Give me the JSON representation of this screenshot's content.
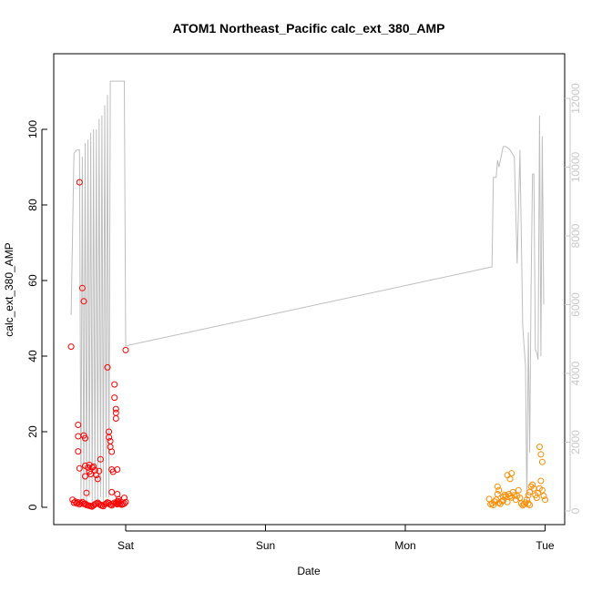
{
  "chart_data": {
    "type": "scatter",
    "title": "ATOM1 Northeast_Pacific calc_ext_380_AMP",
    "xlabel": "Date",
    "ylabel": "calc_ext_380_AMP",
    "x_ticks": [
      "Sat",
      "Sun",
      "Mon",
      "Tue"
    ],
    "y_left_ticks": [
      "0",
      "20",
      "40",
      "60",
      "80",
      "100"
    ],
    "y_right_ticks": [
      "0",
      "2000",
      "4000",
      "6000",
      "8000",
      "10000",
      "12000"
    ],
    "ylim_left": [
      0,
      116
    ],
    "ylim_right": [
      0,
      12300
    ],
    "colors": {
      "red_series": "#ff0000",
      "orange_series": "#ff8c00",
      "line": "#bebebe",
      "axis": "#000000",
      "right_axis": "#c8c8c8"
    },
    "series": [
      {
        "marker": "circle-open",
        "color": "#ff0000",
        "x_days": [
          -0.38,
          -0.37,
          -0.36,
          -0.35,
          -0.34,
          -0.33,
          -0.32,
          -0.31,
          -0.3,
          -0.29,
          -0.28,
          -0.27,
          -0.26,
          -0.25,
          -0.24,
          -0.23,
          -0.22,
          -0.21,
          -0.2,
          -0.19,
          -0.18,
          -0.17,
          -0.16,
          -0.15,
          -0.14,
          -0.13,
          -0.12,
          -0.11,
          -0.1,
          -0.09,
          -0.08,
          -0.07,
          -0.06,
          -0.05,
          -0.04,
          -0.03,
          -0.02,
          -0.01,
          0.0,
          -0.33,
          -0.34,
          -0.34,
          -0.34,
          -0.33,
          -0.31,
          -0.3,
          -0.3,
          -0.29,
          -0.29,
          -0.29,
          -0.28,
          -0.27,
          -0.26,
          -0.26,
          -0.25,
          -0.24,
          -0.23,
          -0.22,
          -0.21,
          -0.2,
          -0.19,
          -0.18,
          -0.13,
          -0.12,
          -0.12,
          -0.11,
          -0.11,
          -0.1,
          -0.1,
          -0.1,
          -0.09,
          -0.08,
          -0.08,
          -0.07,
          -0.07,
          -0.07,
          -0.06,
          -0.06,
          -0.06,
          -0.06,
          -0.05,
          -0.05,
          -0.05,
          -0.01,
          -0.39,
          0.0
        ],
        "y": [
          2.0,
          1.2,
          1.5,
          1.0,
          1.3,
          0.8,
          1.1,
          1.4,
          0.9,
          1.0,
          0.6,
          0.5,
          0.4,
          0.3,
          0.2,
          0.5,
          0.8,
          1.0,
          1.2,
          0.9,
          0.6,
          0.4,
          0.3,
          0.8,
          1.0,
          1.3,
          1.1,
          0.7,
          0.5,
          0.9,
          1.2,
          1.0,
          0.8,
          1.2,
          1.0,
          0.7,
          0.8,
          1.0,
          1.4,
          86.0,
          21.8,
          18.8,
          14.8,
          10.3,
          58.0,
          54.5,
          19.0,
          18.3,
          8.2,
          11.0,
          3.8,
          10.5,
          9.5,
          11.2,
          8.8,
          10.5,
          10.8,
          9.8,
          8.5,
          7.5,
          9.6,
          12.7,
          37.0,
          20.0,
          18.5,
          17.5,
          16.0,
          14.7,
          10.0,
          4.0,
          9.4,
          32.5,
          29.0,
          26.0,
          25.0,
          23.5,
          10.0,
          3.5,
          1.5,
          0.9,
          1.2,
          1.6,
          2.1,
          2.5,
          42.5,
          41.6
        ]
      },
      {
        "marker": "circle-open",
        "color": "#ff8c00",
        "x_days": [
          2.6,
          2.61,
          2.62,
          2.63,
          2.64,
          2.65,
          2.66,
          2.67,
          2.68,
          2.69,
          2.7,
          2.71,
          2.72,
          2.73,
          2.74,
          2.75,
          2.76,
          2.77,
          2.78,
          2.79,
          2.8,
          2.81,
          2.82,
          2.83,
          2.84,
          2.85,
          2.86,
          2.87,
          2.88,
          2.89,
          2.9,
          2.91,
          2.92,
          2.93,
          2.94,
          2.95,
          2.96,
          2.97,
          2.98,
          2.99,
          3.0,
          2.66,
          2.67,
          2.7,
          2.73,
          2.75,
          2.76,
          2.88,
          2.89,
          2.96,
          2.97,
          2.98
        ],
        "y": [
          2.2,
          0.8,
          1.0,
          0.6,
          1.5,
          2.0,
          3.5,
          1.2,
          0.9,
          1.6,
          2.8,
          3.3,
          3.0,
          1.4,
          3.5,
          3.0,
          2.6,
          4.0,
          3.2,
          2.0,
          3.0,
          4.5,
          2.5,
          1.0,
          0.5,
          0.8,
          1.2,
          2.0,
          3.2,
          4.0,
          5.5,
          6.0,
          5.0,
          3.2,
          2.5,
          3.8,
          5.0,
          7.0,
          4.5,
          3.0,
          2.0,
          5.5,
          4.5,
          1.8,
          8.5,
          7.5,
          9.0,
          1.0,
          0.6,
          16.0,
          14.0,
          12.0
        ]
      }
    ],
    "line_series": {
      "color": "#bebebe",
      "axis": "right",
      "x_days": [
        -0.39,
        -0.37,
        -0.35,
        -0.33,
        -0.32,
        -0.31,
        -0.3,
        -0.29,
        -0.28,
        -0.27,
        -0.26,
        -0.25,
        -0.24,
        -0.23,
        -0.22,
        -0.21,
        -0.2,
        -0.19,
        -0.18,
        -0.17,
        -0.16,
        -0.15,
        -0.14,
        -0.13,
        -0.12,
        -0.11,
        -0.1,
        -0.09,
        -0.08,
        -0.07,
        -0.06,
        -0.05,
        -0.04,
        -0.03,
        -0.02,
        -0.01,
        0.0,
        2.62,
        2.63,
        2.65,
        2.66,
        2.67,
        2.7,
        2.72,
        2.75,
        2.78,
        2.8,
        2.82,
        2.84,
        2.86,
        2.87,
        2.88,
        2.89,
        2.9,
        2.91,
        2.92,
        2.93,
        2.94,
        2.95,
        2.96,
        2.97,
        2.98,
        2.99
      ],
      "y": [
        5700,
        10400,
        10500,
        10500,
        200,
        10300,
        200,
        10700,
        200,
        10800,
        400,
        11000,
        200,
        11100,
        300,
        11100,
        300,
        11400,
        400,
        11500,
        300,
        11800,
        400,
        12100,
        400,
        12500,
        12500,
        12500,
        12500,
        12500,
        12500,
        12500,
        12500,
        12500,
        12500,
        12500,
        4800,
        7100,
        9700,
        9700,
        10200,
        10000,
        10600,
        10600,
        10500,
        10300,
        7200,
        10500,
        5400,
        4200,
        100,
        5200,
        1700,
        6500,
        9800,
        9800,
        4700,
        4600,
        4400,
        11500,
        4500,
        10900,
        6000
      ]
    }
  }
}
